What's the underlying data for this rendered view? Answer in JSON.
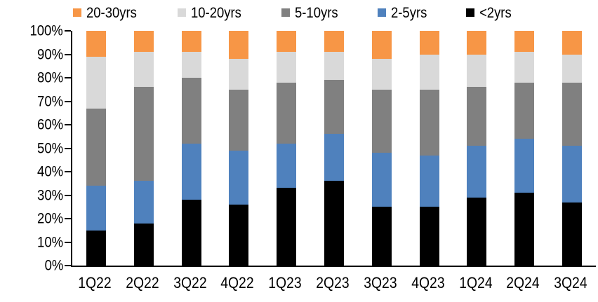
{
  "chart_data": {
    "type": "bar",
    "stacked": true,
    "percent_stacked": true,
    "title": "",
    "xlabel": "",
    "ylabel": "",
    "grid": false,
    "categories": [
      "1Q22",
      "2Q22",
      "3Q22",
      "4Q22",
      "1Q23",
      "2Q23",
      "3Q23",
      "4Q23",
      "1Q24",
      "2Q24",
      "3Q24"
    ],
    "series": [
      {
        "name": "<2yrs",
        "color": "#000000",
        "values": [
          15,
          18,
          28,
          26,
          33,
          36,
          25,
          25,
          29,
          31,
          27
        ]
      },
      {
        "name": "2-5yrs",
        "color": "#4F81BD",
        "values": [
          19,
          18,
          24,
          23,
          19,
          20,
          23,
          22,
          22,
          23,
          24
        ]
      },
      {
        "name": "5-10yrs",
        "color": "#808080",
        "values": [
          33,
          40,
          28,
          26,
          26,
          23,
          27,
          28,
          25,
          24,
          27
        ]
      },
      {
        "name": "10-20yrs",
        "color": "#D9D9D9",
        "values": [
          22,
          15,
          11,
          13,
          13,
          12,
          13,
          15,
          14,
          13,
          12
        ]
      },
      {
        "name": "20-30yrs",
        "color": "#F79646",
        "values": [
          11,
          9,
          9,
          12,
          9,
          9,
          12,
          10,
          10,
          9,
          10
        ]
      }
    ],
    "legend": {
      "position": "top",
      "order": [
        "20-30yrs",
        "10-20yrs",
        "5-10yrs",
        "2-5yrs",
        "<2yrs"
      ]
    },
    "y_axis": {
      "min": 0,
      "max": 100,
      "tick_step": 10,
      "tick_labels": [
        "0%",
        "10%",
        "20%",
        "30%",
        "40%",
        "50%",
        "60%",
        "70%",
        "80%",
        "90%",
        "100%"
      ]
    }
  }
}
